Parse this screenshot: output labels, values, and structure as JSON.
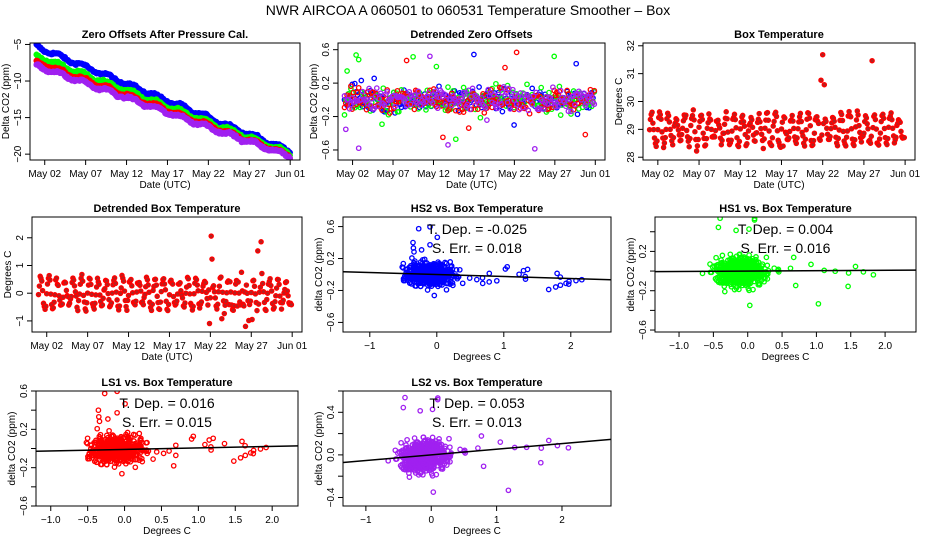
{
  "title": "NWR   AIRCOA A   060501 to 060531   Temperature Smoother – Box",
  "colors": {
    "HS2": "#0000ff",
    "HS1": "#00ff00",
    "LS1": "#ff0000",
    "LS2": "#a020f0",
    "box": "#b22222",
    "boxEdge": "#ff0000",
    "fit": "#000000"
  },
  "chart_data": [
    {
      "id": "zero-offsets",
      "type": "scatter",
      "title": "Zero Offsets After Pressure Cal.",
      "xlabel": "Date (UTC)",
      "ylabel": "Delta CO2 (ppm)",
      "xticks": [
        "May 02",
        "May 07",
        "May 12",
        "May 17",
        "May 22",
        "May 27",
        "Jun 01"
      ],
      "xtick_days": [
        2,
        7,
        12,
        17,
        22,
        27,
        32
      ],
      "xlim": [
        0.2,
        33.2
      ],
      "yticks": [
        -5,
        -10,
        -15,
        -20
      ],
      "ylim": [
        -20.8,
        -4.8
      ],
      "series": [
        {
          "name": "HS2",
          "start": -5.3,
          "end": -19.6
        },
        {
          "name": "HS1",
          "start": -6.6,
          "end": -19.9
        },
        {
          "name": "LS1",
          "start": -7.4,
          "end": -20.2
        },
        {
          "name": "LS2",
          "start": -7.9,
          "end": -20.3
        }
      ],
      "x_range_days": [
        1,
        32
      ]
    },
    {
      "id": "detrended-zero",
      "type": "scatter",
      "title": "Detrended Zero Offsets",
      "xlabel": "Date (UTC)",
      "ylabel": "Delta CO2 (ppm)",
      "xticks": [
        "May 02",
        "May 07",
        "May 12",
        "May 17",
        "May 22",
        "May 27",
        "Jun 01"
      ],
      "xtick_days": [
        2,
        7,
        12,
        17,
        22,
        27,
        32
      ],
      "xlim": [
        0.2,
        33.2
      ],
      "yticks": [
        0.6,
        0.2,
        -0.2,
        -0.6
      ],
      "ylim": [
        -0.72,
        0.68
      ],
      "series": [
        "HS2",
        "HS1",
        "LS1",
        "LS2"
      ],
      "spread": [
        -0.65,
        0.65
      ]
    },
    {
      "id": "box-temp",
      "type": "scatter",
      "title": "Box Temperature",
      "xlabel": "Date (UTC)",
      "ylabel": "Degrees C",
      "xticks": [
        "May 02",
        "May 07",
        "May 12",
        "May 17",
        "May 22",
        "May 27",
        "Jun 01"
      ],
      "xtick_days": [
        2,
        7,
        12,
        17,
        22,
        27,
        32
      ],
      "xlim": [
        0.2,
        33.2
      ],
      "yticks": [
        28,
        29,
        30,
        31,
        32
      ],
      "ylim": [
        27.9,
        32.1
      ],
      "baseline": 29.0,
      "range": [
        28.0,
        32.0
      ],
      "peaks": [
        {
          "day": 22,
          "max": 32.0
        },
        {
          "day": 26,
          "max": 31.4
        },
        {
          "day": 28,
          "max": 31.6
        },
        {
          "day": 17,
          "min": 28.0
        }
      ]
    },
    {
      "id": "detrended-box-temp",
      "type": "scatter",
      "title": "Detrended Box Temperature",
      "xlabel": "Date (UTC)",
      "ylabel": "Degrees C",
      "xticks": [
        "May 02",
        "May 07",
        "May 12",
        "May 17",
        "May 22",
        "May 27",
        "Jun 01"
      ],
      "xtick_days": [
        2,
        7,
        12,
        17,
        22,
        27,
        32
      ],
      "xlim": [
        0.2,
        33.2
      ],
      "yticks": [
        -1,
        0,
        1,
        2
      ],
      "ylim": [
        -1.4,
        2.75
      ],
      "baseline": 0,
      "range": [
        -1.3,
        2.6
      ],
      "peaks": [
        {
          "day": 22,
          "max": 2.6
        },
        {
          "day": 26,
          "max": 2.0
        },
        {
          "day": 28,
          "max": 2.3
        }
      ]
    },
    {
      "id": "hs2-vs-box",
      "type": "scatter",
      "title": "HS2 vs. Box Temperature",
      "xlabel": "Degrees C",
      "ylabel": "delta CO2 (ppm)",
      "series": "HS2",
      "xticks": [
        -1,
        0,
        1,
        2
      ],
      "xlim": [
        -1.4,
        2.6
      ],
      "yticks": [
        -0.6,
        -0.2,
        0.2,
        0.6
      ],
      "ylim": [
        -0.72,
        0.72
      ],
      "annotation": [
        "T. Dep. =  -0.025",
        "S. Err. =  0.018"
      ],
      "slope": -0.025,
      "intercept": 0.0
    },
    {
      "id": "hs1-vs-box",
      "type": "scatter",
      "title": "HS1 vs. Box Temperature",
      "xlabel": "Degrees C",
      "ylabel": "delta CO2 (ppm)",
      "series": "HS1",
      "xticks": [
        -1.0,
        -0.5,
        0.0,
        0.5,
        1.0,
        1.5,
        2.0
      ],
      "xlim": [
        -1.35,
        2.45
      ],
      "yticks": [
        -0.6,
        -0.2,
        0.2
      ],
      "ytick_minor": [
        -0.4,
        0.0,
        0.4
      ],
      "ylim": [
        -0.62,
        0.55
      ],
      "annotation": [
        "T. Dep. =  0.004",
        "S. Err. =  0.016"
      ],
      "slope": 0.004,
      "intercept": 0.0
    },
    {
      "id": "ls1-vs-box",
      "type": "scatter",
      "title": "LS1 vs. Box Temperature",
      "xlabel": "Degrees C",
      "ylabel": "delta CO2 (ppm)",
      "series": "LS1",
      "xticks": [
        -1.0,
        -0.5,
        0.0,
        0.5,
        1.0,
        1.5,
        2.0
      ],
      "xlim": [
        -1.2,
        2.35
      ],
      "yticks": [
        -0.6,
        -0.2,
        0.2,
        0.6
      ],
      "ytick_minor": [
        -0.4,
        0.0,
        0.4
      ],
      "ylim": [
        -0.6,
        0.6
      ],
      "annotation": [
        "T. Dep. =  0.016",
        "S. Err. =  0.015"
      ],
      "slope": 0.016,
      "intercept": -0.01
    },
    {
      "id": "ls2-vs-box",
      "type": "scatter",
      "title": "LS2 vs. Box Temperature",
      "xlabel": "Degrees C",
      "ylabel": "delta CO2 (ppm)",
      "series": "LS2",
      "xticks": [
        -1,
        0,
        1,
        2
      ],
      "xlim": [
        -1.35,
        2.75
      ],
      "yticks": [
        -0.4,
        0.0,
        0.4
      ],
      "ytick_minor": [
        -0.2,
        0.2,
        0.6
      ],
      "ylim": [
        -0.48,
        0.6
      ],
      "annotation": [
        "T. Dep. =  0.053",
        "S. Err. =  0.013"
      ],
      "slope": 0.053,
      "intercept": 0.0
    }
  ]
}
